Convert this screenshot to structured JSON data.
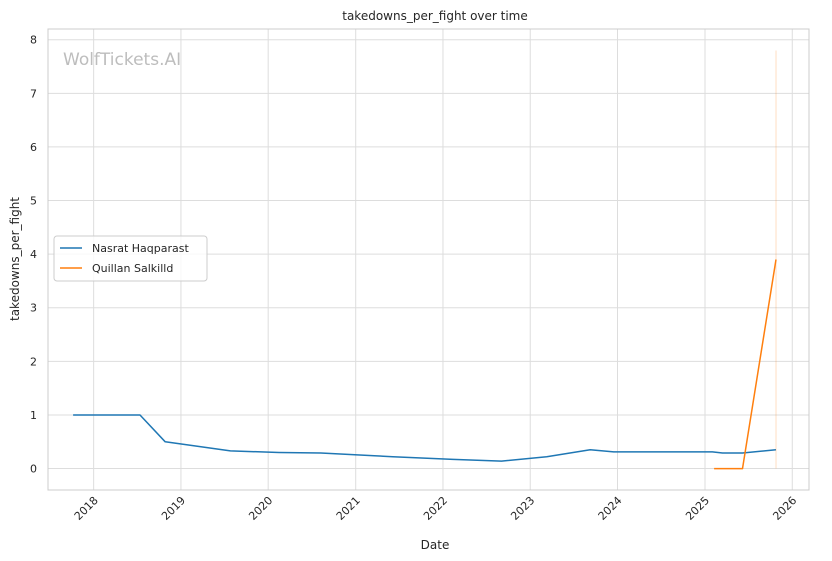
{
  "chart_data": {
    "type": "line",
    "title": "takedowns_per_fight over time",
    "xlabel": "Date",
    "ylabel": "takedowns_per_fight",
    "watermark": "WolfTickets.AI",
    "x_ticks": [
      "2018",
      "2019",
      "2020",
      "2021",
      "2022",
      "2023",
      "2024",
      "2025",
      "2026"
    ],
    "y_ticks": [
      "0",
      "1",
      "2",
      "3",
      "4",
      "5",
      "6",
      "7",
      "8"
    ],
    "xlim": [
      "2017-06-24",
      "2026-03-12"
    ],
    "ylim": [
      -0.4,
      8.2
    ],
    "grid": true,
    "legend_position": "center-left",
    "series": [
      {
        "name": "Nasrat Haqparast",
        "color": "#1f77b4",
        "points": [
          [
            "2017-10-07",
            1.0
          ],
          [
            "2018-07-14",
            1.0
          ],
          [
            "2018-10-27",
            0.5
          ],
          [
            "2019-07-27",
            0.33
          ],
          [
            "2020-02-15",
            0.3
          ],
          [
            "2020-08-08",
            0.29
          ],
          [
            "2021-03-20",
            0.24
          ],
          [
            "2021-06-05",
            0.22
          ],
          [
            "2022-02-12",
            0.17
          ],
          [
            "2022-09-03",
            0.14
          ],
          [
            "2023-03-11",
            0.22
          ],
          [
            "2023-09-09",
            0.35
          ],
          [
            "2023-12-16",
            0.31
          ],
          [
            "2025-02-01",
            0.31
          ],
          [
            "2025-03-15",
            0.29
          ],
          [
            "2025-06-07",
            0.29
          ],
          [
            "2025-10-25",
            0.35
          ]
        ]
      },
      {
        "name": "Quillan Salkilld",
        "color": "#ff7f0e",
        "points": [
          [
            "2025-02-08",
            0.0
          ],
          [
            "2025-06-07",
            0.0
          ],
          [
            "2025-10-25",
            3.9
          ]
        ],
        "error_band": {
          "x": "2025-10-25",
          "low": 0.0,
          "high": 7.8
        }
      }
    ]
  }
}
